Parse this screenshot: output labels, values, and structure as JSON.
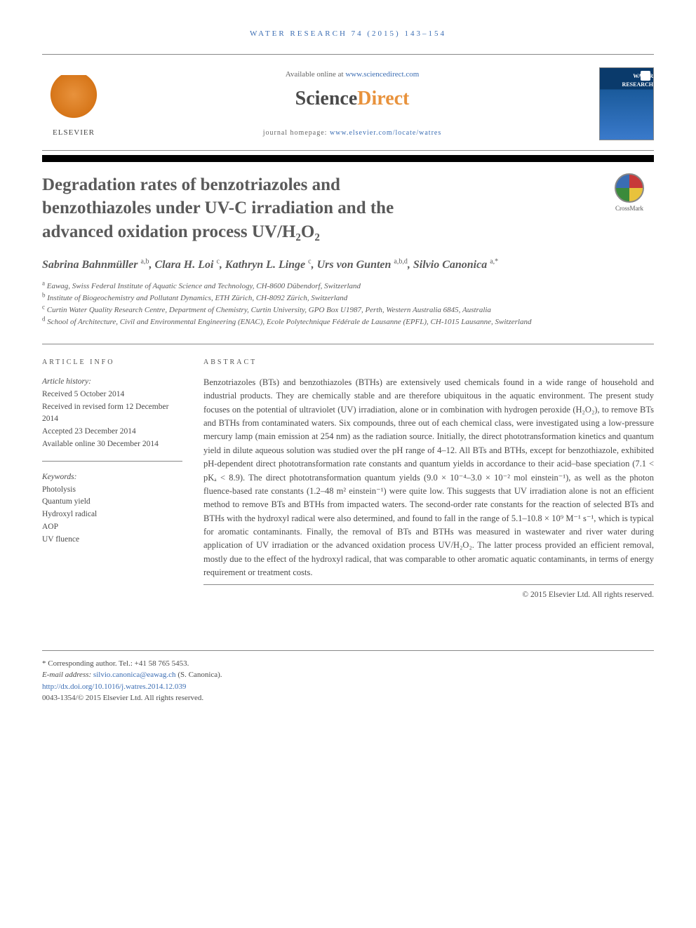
{
  "header": {
    "citation": "WATER RESEARCH 74 (2015) 143–154",
    "available_prefix": "Available online at ",
    "available_link": "www.sciencedirect.com",
    "sd_logo_left": "Science",
    "sd_logo_right": "Direct",
    "publisher": "ELSEVIER",
    "journal_home_label": "journal homepage: ",
    "journal_home_link": "www.elsevier.com/locate/watres",
    "journal_cover_title": "WATER RESEARCH"
  },
  "title": {
    "line1": "Degradation rates of benzotriazoles and",
    "line2": "benzothiazoles under UV-C irradiation and the",
    "line3": "advanced oxidation process UV/H₂O₂"
  },
  "crossmark": "CrossMark",
  "authors_html": "Sabrina Bahnmüller <sup>a,b</sup>, Clara H. Loi <sup>c</sup>, Kathryn L. Linge <sup>c</sup>, Urs von Gunten <sup>a,b,d</sup>, Silvio Canonica <sup>a,*</sup>",
  "affiliations": {
    "a": "Eawag, Swiss Federal Institute of Aquatic Science and Technology, CH-8600 Dübendorf, Switzerland",
    "b": "Institute of Biogeochemistry and Pollutant Dynamics, ETH Zürich, CH-8092 Zürich, Switzerland",
    "c": "Curtin Water Quality Research Centre, Department of Chemistry, Curtin University, GPO Box U1987, Perth, Western Australia 6845, Australia",
    "d": "School of Architecture, Civil and Environmental Engineering (ENAC), Ecole Polytechnique Fédérale de Lausanne (EPFL), CH-1015 Lausanne, Switzerland"
  },
  "article_info": {
    "head": "ARTICLE INFO",
    "history_label": "Article history:",
    "received": "Received 5 October 2014",
    "revised": "Received in revised form 12 December 2014",
    "accepted": "Accepted 23 December 2014",
    "online": "Available online 30 December 2014",
    "keywords_label": "Keywords:",
    "keywords": [
      "Photolysis",
      "Quantum yield",
      "Hydroxyl radical",
      "AOP",
      "UV fluence"
    ]
  },
  "abstract": {
    "head": "ABSTRACT",
    "text": "Benzotriazoles (BTs) and benzothiazoles (BTHs) are extensively used chemicals found in a wide range of household and industrial products. They are chemically stable and are therefore ubiquitous in the aquatic environment. The present study focuses on the potential of ultraviolet (UV) irradiation, alone or in combination with hydrogen peroxide (H₂O₂), to remove BTs and BTHs from contaminated waters. Six compounds, three out of each chemical class, were investigated using a low-pressure mercury lamp (main emission at 254 nm) as the radiation source. Initially, the direct phototransformation kinetics and quantum yield in dilute aqueous solution was studied over the pH range of 4–12. All BTs and BTHs, except for benzothiazole, exhibited pH-dependent direct phototransformation rate constants and quantum yields in accordance to their acid–base speciation (7.1 < pKₐ < 8.9). The direct phototransformation quantum yields (9.0 × 10⁻⁴–3.0 × 10⁻² mol einstein⁻¹), as well as the photon fluence-based rate constants (1.2–48 m² einstein⁻¹) were quite low. This suggests that UV irradiation alone is not an efficient method to remove BTs and BTHs from impacted waters. The second-order rate constants for the reaction of selected BTs and BTHs with the hydroxyl radical were also determined, and found to fall in the range of 5.1–10.8 × 10⁹ M⁻¹ s⁻¹, which is typical for aromatic contaminants. Finally, the removal of BTs and BTHs was measured in wastewater and river water during application of UV irradiation or the advanced oxidation process UV/H₂O₂. The latter process provided an efficient removal, mostly due to the effect of the hydroxyl radical, that was comparable to other aromatic aquatic contaminants, in terms of energy requirement or treatment costs.",
    "copyright": "© 2015 Elsevier Ltd. All rights reserved."
  },
  "footer": {
    "corresponding": "* Corresponding author. Tel.: +41 58 765 5453.",
    "email_label": "E-mail address: ",
    "email": "silvio.canonica@eawag.ch",
    "email_suffix": " (S. Canonica).",
    "doi": "http://dx.doi.org/10.1016/j.watres.2014.12.039",
    "issn": "0043-1354/© 2015 Elsevier Ltd. All rights reserved."
  },
  "colors": {
    "link": "#3b6db3",
    "text": "#4a4a4a",
    "orange": "#e8923c",
    "rule": "#888888"
  }
}
